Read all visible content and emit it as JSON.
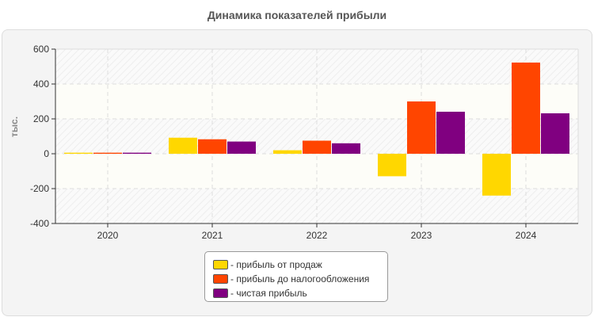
{
  "chart_data": {
    "type": "bar",
    "title": "Динамика показателей прибыли",
    "ylabel": "тыс.",
    "xlabel": "",
    "ylim": [
      -400,
      600
    ],
    "yticks": [
      600,
      400,
      200,
      0,
      -200,
      -400
    ],
    "grid": true,
    "legend_position": "bottom",
    "categories": [
      "2020",
      "2021",
      "2022",
      "2023",
      "2024"
    ],
    "series": [
      {
        "name": "- прибыль от продаж",
        "color": "#FFD700",
        "values": [
          6,
          92,
          20,
          -129,
          -240
        ]
      },
      {
        "name": "- прибыль до налогообложения",
        "color": "#FF4500",
        "values": [
          6,
          83,
          75,
          300,
          523
        ]
      },
      {
        "name": "- чистая прибыль",
        "color": "#800080",
        "values": [
          6,
          70,
          60,
          241,
          232
        ]
      }
    ]
  }
}
